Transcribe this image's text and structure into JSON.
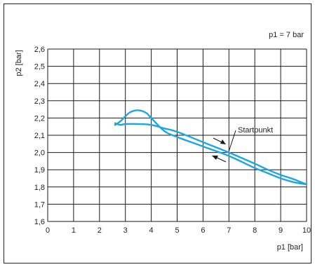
{
  "chart_data": {
    "type": "line",
    "title": "",
    "annotation_top_right": "p1 = 7 bar",
    "xlabel": "p1 [bar]",
    "ylabel": "p2 [bar]",
    "xlim": [
      0,
      10
    ],
    "ylim": [
      1.6,
      2.6
    ],
    "grid": true,
    "x_ticks": [
      0,
      1,
      2,
      3,
      4,
      5,
      6,
      7,
      8,
      9,
      10
    ],
    "x_tick_labels": [
      "0",
      "1",
      "2",
      "3",
      "4",
      "5",
      "6",
      "7",
      "8",
      "9",
      "10"
    ],
    "y_ticks": [
      1.6,
      1.7,
      1.8,
      1.9,
      2.0,
      2.1,
      2.2,
      2.3,
      2.4,
      2.5,
      2.6
    ],
    "y_tick_labels": [
      "1,6",
      "1,7",
      "1,8",
      "1,9",
      "2,0",
      "2,1",
      "2,2",
      "2,3",
      "2,4",
      "2,5",
      "2,6"
    ],
    "line_color": "#1ea6e0",
    "series": [
      {
        "values": [
          [
            2.6,
            2.17
          ],
          [
            2.8,
            2.16
          ],
          [
            3.0,
            2.165
          ],
          [
            3.5,
            2.165
          ],
          [
            4.0,
            2.16
          ],
          [
            4.5,
            2.14
          ],
          [
            5.0,
            2.12
          ],
          [
            6.0,
            2.06
          ],
          [
            7.0,
            2.0
          ],
          [
            8.0,
            1.935
          ],
          [
            8.5,
            1.9
          ],
          [
            9.0,
            1.87
          ],
          [
            9.5,
            1.845
          ],
          [
            10.0,
            1.815
          ]
        ]
      },
      {
        "values": [
          [
            10.0,
            1.815
          ],
          [
            9.5,
            1.828
          ],
          [
            9.0,
            1.85
          ],
          [
            8.5,
            1.88
          ],
          [
            8.0,
            1.91
          ],
          [
            7.0,
            1.98
          ],
          [
            6.0,
            2.035
          ],
          [
            5.0,
            2.09
          ],
          [
            4.5,
            2.125
          ],
          [
            4.0,
            2.2
          ],
          [
            3.8,
            2.23
          ],
          [
            3.5,
            2.245
          ],
          [
            3.2,
            2.235
          ],
          [
            3.0,
            2.21
          ],
          [
            2.8,
            2.18
          ],
          [
            2.6,
            2.16
          ]
        ]
      }
    ],
    "annotations": [
      {
        "text": "Startpunkt",
        "x": 7,
        "y": 2.0
      }
    ]
  }
}
